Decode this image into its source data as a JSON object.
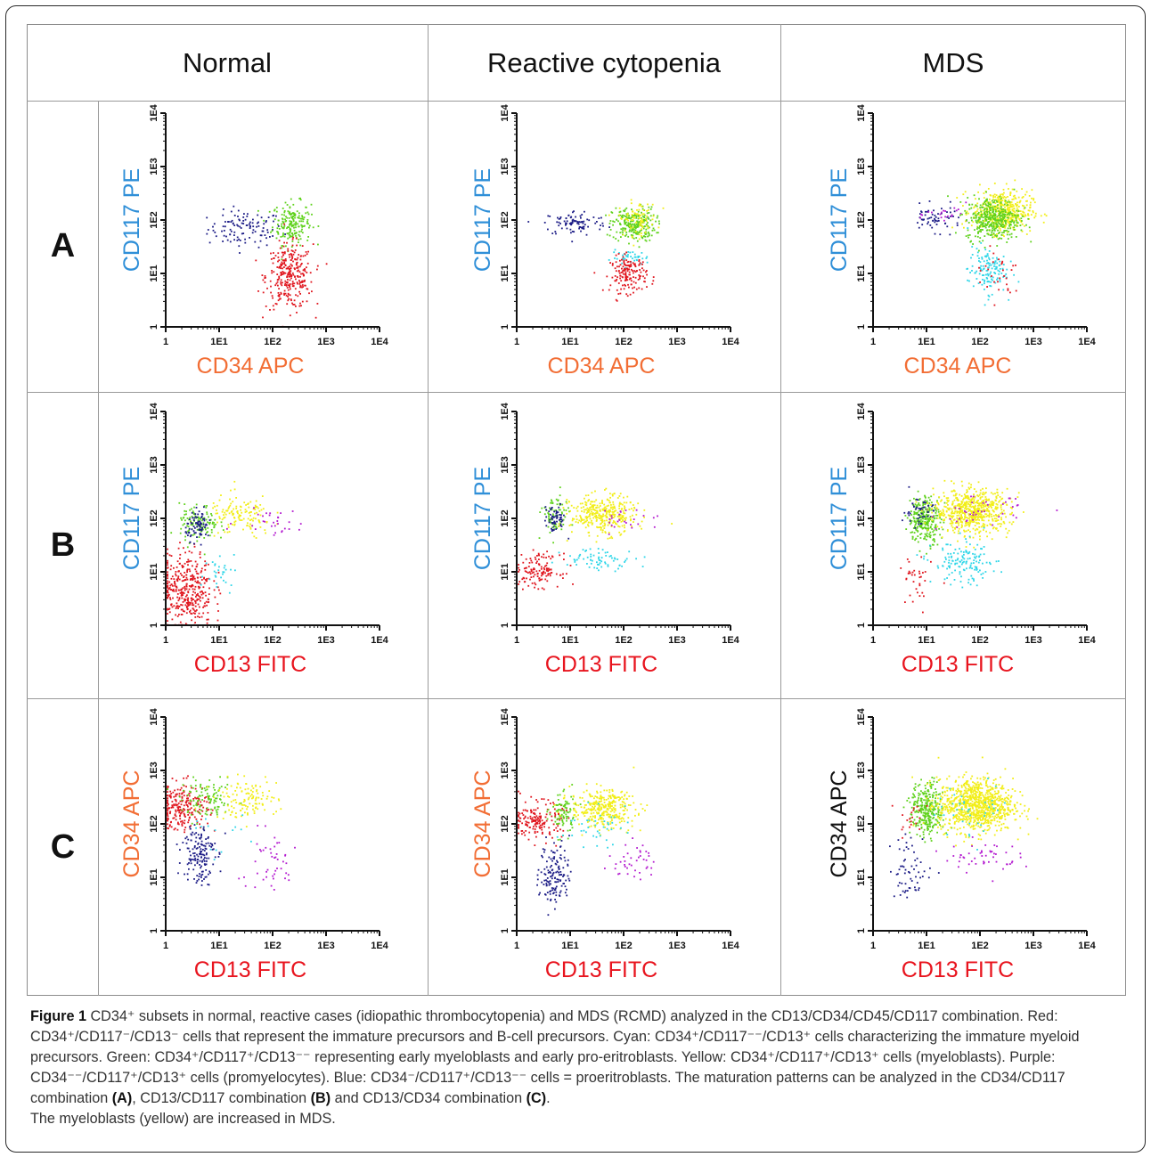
{
  "columns": [
    "Normal",
    "Reactive cytopenia",
    "MDS"
  ],
  "rows": [
    "A",
    "B",
    "C"
  ],
  "colors": {
    "red": "#e0161e",
    "cyan": "#2ed6e8",
    "green": "#5fd21c",
    "yellow": "#f2ee18",
    "purple": "#b41bd0",
    "blue": "#1c1c86",
    "label_blue": "#2f8fd8",
    "label_orange": "#f26e35",
    "label_red": "#e8141e",
    "label_black": "#111111"
  },
  "axis_ticks": [
    "1",
    "1E1",
    "1E2",
    "1E3",
    "1E4"
  ],
  "chart_data": [
    {
      "id": "A-normal",
      "type": "scatter",
      "xlabel": "CD34 APC",
      "ylabel": "CD117 PE",
      "x_scale": "log",
      "y_scale": "log",
      "xlim": [
        1,
        10000
      ],
      "ylim": [
        1,
        10000
      ],
      "series": [
        {
          "color": "blue",
          "n": 110,
          "cx": 30,
          "cy": 70,
          "sx": 0.35,
          "sy": 0.17
        },
        {
          "color": "green",
          "n": 190,
          "cx": 220,
          "cy": 90,
          "sx": 0.18,
          "sy": 0.2
        },
        {
          "color": "red",
          "n": 300,
          "cx": 200,
          "cy": 9,
          "sx": 0.22,
          "sy": 0.3
        }
      ]
    },
    {
      "id": "A-reactive",
      "type": "scatter",
      "xlabel": "CD34 APC",
      "ylabel": "CD117 PE",
      "x_scale": "log",
      "y_scale": "log",
      "xlim": [
        1,
        10000
      ],
      "ylim": [
        1,
        10000
      ],
      "series": [
        {
          "color": "blue",
          "n": 90,
          "cx": 12,
          "cy": 90,
          "sx": 0.3,
          "sy": 0.12
        },
        {
          "color": "green",
          "n": 240,
          "cx": 150,
          "cy": 85,
          "sx": 0.2,
          "sy": 0.16
        },
        {
          "color": "yellow",
          "n": 80,
          "cx": 180,
          "cy": 110,
          "sx": 0.18,
          "sy": 0.16
        },
        {
          "color": "cyan",
          "n": 40,
          "cx": 130,
          "cy": 20,
          "sx": 0.18,
          "sy": 0.07
        },
        {
          "color": "red",
          "n": 160,
          "cx": 120,
          "cy": 10,
          "sx": 0.17,
          "sy": 0.17
        }
      ]
    },
    {
      "id": "A-mds",
      "type": "scatter",
      "xlabel": "CD34 APC",
      "ylabel": "CD117 PE",
      "x_scale": "log",
      "y_scale": "log",
      "xlim": [
        1,
        10000
      ],
      "ylim": [
        1,
        10000
      ],
      "series": [
        {
          "color": "blue",
          "n": 60,
          "cx": 14,
          "cy": 110,
          "sx": 0.25,
          "sy": 0.12
        },
        {
          "color": "purple",
          "n": 20,
          "cx": 25,
          "cy": 130,
          "sx": 0.2,
          "sy": 0.1
        },
        {
          "color": "yellow",
          "n": 420,
          "cx": 250,
          "cy": 150,
          "sx": 0.28,
          "sy": 0.2
        },
        {
          "color": "green",
          "n": 380,
          "cx": 170,
          "cy": 110,
          "sx": 0.25,
          "sy": 0.2
        },
        {
          "color": "cyan",
          "n": 130,
          "cx": 130,
          "cy": 12,
          "sx": 0.18,
          "sy": 0.22
        },
        {
          "color": "red",
          "n": 30,
          "cx": 220,
          "cy": 10,
          "sx": 0.25,
          "sy": 0.25
        }
      ]
    },
    {
      "id": "B-normal",
      "type": "scatter",
      "xlabel": "CD13 FITC",
      "ylabel": "CD117 PE",
      "x_scale": "log",
      "y_scale": "log",
      "xlim": [
        1,
        10000
      ],
      "ylim": [
        1,
        10000
      ],
      "series": [
        {
          "color": "red",
          "n": 380,
          "cx": 2.3,
          "cy": 5,
          "sx": 0.25,
          "sy": 0.35
        },
        {
          "color": "green",
          "n": 120,
          "cx": 4,
          "cy": 80,
          "sx": 0.18,
          "sy": 0.18
        },
        {
          "color": "blue",
          "n": 80,
          "cx": 4,
          "cy": 75,
          "sx": 0.12,
          "sy": 0.13
        },
        {
          "color": "yellow",
          "n": 130,
          "cx": 25,
          "cy": 110,
          "sx": 0.3,
          "sy": 0.2
        },
        {
          "color": "purple",
          "n": 30,
          "cx": 90,
          "cy": 90,
          "sx": 0.3,
          "sy": 0.12
        },
        {
          "color": "cyan",
          "n": 30,
          "cx": 10,
          "cy": 12,
          "sx": 0.25,
          "sy": 0.2
        }
      ]
    },
    {
      "id": "B-reactive",
      "type": "scatter",
      "xlabel": "CD13 FITC",
      "ylabel": "CD117 PE",
      "x_scale": "log",
      "y_scale": "log",
      "xlim": [
        1,
        10000
      ],
      "ylim": [
        1,
        10000
      ],
      "series": [
        {
          "color": "red",
          "n": 130,
          "cx": 2.5,
          "cy": 11,
          "sx": 0.2,
          "sy": 0.15
        },
        {
          "color": "green",
          "n": 80,
          "cx": 5,
          "cy": 110,
          "sx": 0.12,
          "sy": 0.2
        },
        {
          "color": "blue",
          "n": 60,
          "cx": 5,
          "cy": 100,
          "sx": 0.1,
          "sy": 0.12
        },
        {
          "color": "yellow",
          "n": 350,
          "cx": 40,
          "cy": 120,
          "sx": 0.3,
          "sy": 0.18
        },
        {
          "color": "cyan",
          "n": 70,
          "cx": 35,
          "cy": 18,
          "sx": 0.35,
          "sy": 0.1
        },
        {
          "color": "purple",
          "n": 25,
          "cx": 130,
          "cy": 100,
          "sx": 0.3,
          "sy": 0.12
        }
      ]
    },
    {
      "id": "B-mds",
      "type": "scatter",
      "xlabel": "CD13 FITC",
      "ylabel": "CD117 PE",
      "x_scale": "log",
      "y_scale": "log",
      "xlim": [
        1,
        10000
      ],
      "ylim": [
        1,
        10000
      ],
      "series": [
        {
          "color": "green",
          "n": 260,
          "cx": 9,
          "cy": 100,
          "sx": 0.15,
          "sy": 0.22
        },
        {
          "color": "blue",
          "n": 50,
          "cx": 7,
          "cy": 140,
          "sx": 0.15,
          "sy": 0.15
        },
        {
          "color": "yellow",
          "n": 650,
          "cx": 70,
          "cy": 140,
          "sx": 0.35,
          "sy": 0.2
        },
        {
          "color": "purple",
          "n": 40,
          "cx": 100,
          "cy": 130,
          "sx": 0.4,
          "sy": 0.15
        },
        {
          "color": "cyan",
          "n": 140,
          "cx": 50,
          "cy": 15,
          "sx": 0.3,
          "sy": 0.2
        },
        {
          "color": "red",
          "n": 35,
          "cx": 6,
          "cy": 6,
          "sx": 0.15,
          "sy": 0.3
        }
      ]
    },
    {
      "id": "C-normal",
      "type": "scatter",
      "xlabel": "CD13 FITC",
      "ylabel": "CD34 APC",
      "x_scale": "log",
      "y_scale": "log",
      "xlim": [
        1,
        10000
      ],
      "ylim": [
        1,
        10000
      ],
      "series": [
        {
          "color": "red",
          "n": 230,
          "cx": 2,
          "cy": 220,
          "sx": 0.25,
          "sy": 0.22
        },
        {
          "color": "green",
          "n": 110,
          "cx": 6,
          "cy": 280,
          "sx": 0.25,
          "sy": 0.18
        },
        {
          "color": "yellow",
          "n": 120,
          "cx": 30,
          "cy": 300,
          "sx": 0.3,
          "sy": 0.18
        },
        {
          "color": "blue",
          "n": 150,
          "cx": 4,
          "cy": 30,
          "sx": 0.15,
          "sy": 0.3
        },
        {
          "color": "purple",
          "n": 45,
          "cx": 80,
          "cy": 20,
          "sx": 0.3,
          "sy": 0.3
        },
        {
          "color": "cyan",
          "n": 15,
          "cx": 10,
          "cy": 60,
          "sx": 0.3,
          "sy": 0.3
        }
      ]
    },
    {
      "id": "C-reactive",
      "type": "scatter",
      "xlabel": "CD13 FITC",
      "ylabel": "CD34 APC",
      "x_scale": "log",
      "y_scale": "log",
      "xlim": [
        1,
        10000
      ],
      "ylim": [
        1,
        10000
      ],
      "series": [
        {
          "color": "red",
          "n": 170,
          "cx": 2.5,
          "cy": 120,
          "sx": 0.22,
          "sy": 0.17
        },
        {
          "color": "green",
          "n": 90,
          "cx": 7,
          "cy": 160,
          "sx": 0.12,
          "sy": 0.2
        },
        {
          "color": "yellow",
          "n": 330,
          "cx": 40,
          "cy": 200,
          "sx": 0.3,
          "sy": 0.18
        },
        {
          "color": "cyan",
          "n": 40,
          "cx": 25,
          "cy": 90,
          "sx": 0.3,
          "sy": 0.18
        },
        {
          "color": "blue",
          "n": 140,
          "cx": 5,
          "cy": 12,
          "sx": 0.14,
          "sy": 0.3
        },
        {
          "color": "purple",
          "n": 40,
          "cx": 150,
          "cy": 20,
          "sx": 0.2,
          "sy": 0.18
        }
      ]
    },
    {
      "id": "C-mds",
      "type": "scatter",
      "xlabel": "CD13 FITC",
      "ylabel": "CD34 APC",
      "x_scale": "log",
      "y_scale": "log",
      "xlim": [
        1,
        10000
      ],
      "ylim": [
        1,
        10000
      ],
      "series": [
        {
          "color": "green",
          "n": 300,
          "cx": 10,
          "cy": 190,
          "sx": 0.15,
          "sy": 0.25
        },
        {
          "color": "yellow",
          "n": 950,
          "cx": 80,
          "cy": 230,
          "sx": 0.35,
          "sy": 0.25
        },
        {
          "color": "cyan",
          "n": 40,
          "cx": 80,
          "cy": 200,
          "sx": 0.35,
          "sy": 0.25
        },
        {
          "color": "blue",
          "n": 60,
          "cx": 5,
          "cy": 15,
          "sx": 0.2,
          "sy": 0.3
        },
        {
          "color": "purple",
          "n": 50,
          "cx": 100,
          "cy": 25,
          "sx": 0.35,
          "sy": 0.15
        },
        {
          "color": "red",
          "n": 20,
          "cx": 5,
          "cy": 150,
          "sx": 0.12,
          "sy": 0.2
        }
      ]
    }
  ],
  "caption": {
    "label": "Figure 1",
    "text": " CD34⁺ subsets in normal, reactive cases (idiopathic thrombocytopenia) and MDS (RCMD) analyzed in the CD13/CD34/CD45/CD117 combination. Red: CD34⁺/CD117⁻/CD13⁻ cells that represent the immature precursors and B-cell precursors. Cyan: CD34⁺/CD117⁻⁻/CD13⁺ cells characterizing the immature myeloid precursors. Green: CD34⁺/CD117⁺/CD13⁻⁻ representing early myeloblasts and early pro-eritroblasts. Yellow: CD34⁺/CD117⁺/CD13⁺ cells (myeloblasts). Purple: CD34⁻⁻/CD117⁺/CD13⁺ cells (promyelocytes). Blue: CD34⁻/CD117⁺/CD13⁻⁻ cells = proeritroblasts. The maturation patterns can be analyzed in the CD34/CD117 combination ",
    "a": "(A)",
    "mid1": ", CD13/CD117 combination ",
    "b": "(B)",
    "mid2": " and CD13/CD34 combination ",
    "c": "(C)",
    "end": ".",
    "last": "The myeloblasts (yellow) are increased in MDS."
  }
}
